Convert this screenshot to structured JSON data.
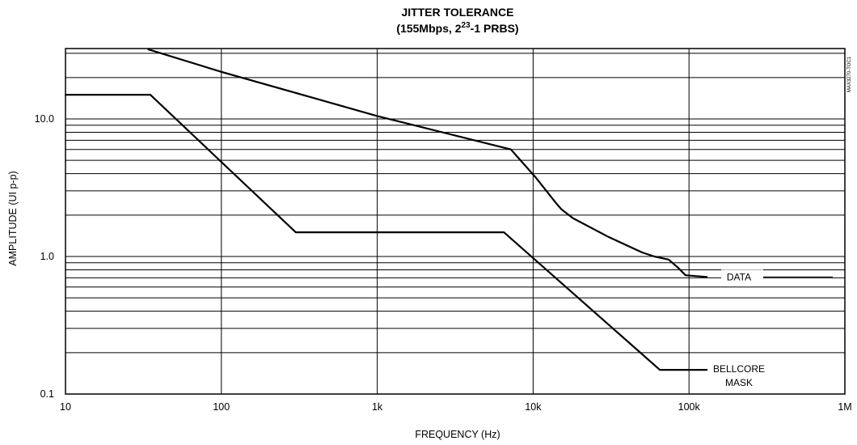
{
  "chart_data": {
    "type": "line",
    "title": "JITTER TOLERANCE",
    "subtitle": {
      "prefix": "(155Mbps, 2",
      "superscript": "23",
      "suffix": "-1 PRBS)"
    },
    "xlabel": "FREQUENCY (Hz)",
    "ylabel": "AMPLITUDE (UI p-p)",
    "x_scale": "log",
    "y_scale": "log",
    "xlim": [
      10,
      1000000
    ],
    "ylim": [
      0.1,
      32
    ],
    "x_ticks": [
      {
        "value": 10,
        "label": "10"
      },
      {
        "value": 100,
        "label": "100"
      },
      {
        "value": 1000,
        "label": "1k"
      },
      {
        "value": 10000,
        "label": "10k"
      },
      {
        "value": 100000,
        "label": "100k"
      },
      {
        "value": 1000000,
        "label": "1M"
      }
    ],
    "y_ticks": [
      {
        "value": 0.1,
        "label": "0.1"
      },
      {
        "value": 1,
        "label": "1.0"
      },
      {
        "value": 10,
        "label": "10.0"
      }
    ],
    "grid": true,
    "series": [
      {
        "name": "DATA",
        "color": "#000000",
        "x": [
          34,
          100,
          1000,
          7200,
          10500,
          14000,
          15200,
          18000,
          30000,
          50000,
          60000,
          74000,
          85000,
          95000,
          130000
        ],
        "y": [
          32,
          22,
          10.5,
          6.0,
          3.7,
          2.45,
          2.2,
          1.9,
          1.4,
          1.07,
          1.0,
          0.95,
          0.83,
          0.73,
          0.71
        ]
      },
      {
        "name": "BELLCORE MASK",
        "color": "#000000",
        "x": [
          10,
          35,
          300,
          6500,
          65000,
          130000
        ],
        "y": [
          15,
          15,
          1.5,
          1.5,
          0.15,
          0.15
        ]
      }
    ],
    "annotations": [
      {
        "id": "data",
        "lines": [
          "DATA"
        ]
      },
      {
        "id": "bellcore",
        "lines": [
          "BELLCORE",
          "MASK"
        ]
      }
    ],
    "corner_code": "MAX3270-TOC1"
  }
}
